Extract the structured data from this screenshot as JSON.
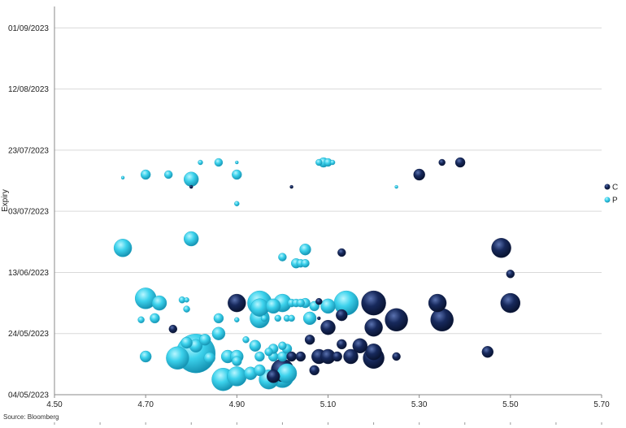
{
  "chart_data": {
    "type": "scatter",
    "ylabel": "Expiry",
    "xlim": [
      4.5,
      5.7
    ],
    "x_ticks": [
      "4.50",
      "4.70",
      "4.90",
      "5.10",
      "5.30",
      "5.50",
      "5.70"
    ],
    "y_ticks": [
      "04/05/2023",
      "24/05/2023",
      "13/06/2023",
      "03/07/2023",
      "23/07/2023",
      "12/08/2023",
      "01/09/2023"
    ],
    "ylim_days": [
      0,
      120
    ],
    "grid": "horizontal",
    "legend_position": "right",
    "colors": {
      "C": "#17295c",
      "P": "#3cd2ec"
    },
    "series": [
      {
        "name": "P",
        "points": [
          {
            "x": 4.81,
            "y": 13.5,
            "s": 24
          },
          {
            "x": 4.77,
            "y": 12.0,
            "s": 14
          },
          {
            "x": 4.7,
            "y": 12.5,
            "s": 7
          },
          {
            "x": 4.87,
            "y": 5.0,
            "s": 14
          },
          {
            "x": 4.9,
            "y": 6.0,
            "s": 12
          },
          {
            "x": 4.97,
            "y": 5.0,
            "s": 12
          },
          {
            "x": 5.0,
            "y": 6.0,
            "s": 14
          },
          {
            "x": 5.01,
            "y": 7.0,
            "s": 12
          },
          {
            "x": 4.93,
            "y": 7.0,
            "s": 8
          },
          {
            "x": 4.95,
            "y": 8.0,
            "s": 7
          },
          {
            "x": 4.84,
            "y": 12.0,
            "s": 7
          },
          {
            "x": 4.88,
            "y": 12.5,
            "s": 8
          },
          {
            "x": 4.9,
            "y": 12.5,
            "s": 8
          },
          {
            "x": 4.9,
            "y": 11.0,
            "s": 6
          },
          {
            "x": 4.95,
            "y": 12.5,
            "s": 6
          },
          {
            "x": 4.98,
            "y": 12.5,
            "s": 6
          },
          {
            "x": 5.0,
            "y": 12.5,
            "s": 6
          },
          {
            "x": 4.94,
            "y": 16.0,
            "s": 7
          },
          {
            "x": 4.98,
            "y": 15.0,
            "s": 6
          },
          {
            "x": 5.01,
            "y": 15.0,
            "s": 6
          },
          {
            "x": 4.97,
            "y": 14.0,
            "s": 5
          },
          {
            "x": 5.0,
            "y": 16.0,
            "s": 5
          },
          {
            "x": 4.79,
            "y": 17.0,
            "s": 7
          },
          {
            "x": 4.81,
            "y": 16.0,
            "s": 8
          },
          {
            "x": 4.83,
            "y": 18.0,
            "s": 7
          },
          {
            "x": 4.86,
            "y": 20.0,
            "s": 8
          },
          {
            "x": 4.92,
            "y": 18.0,
            "s": 4
          },
          {
            "x": 4.96,
            "y": 25.0,
            "s": 4
          },
          {
            "x": 4.69,
            "y": 24.5,
            "s": 4
          },
          {
            "x": 4.72,
            "y": 25.0,
            "s": 6
          },
          {
            "x": 4.86,
            "y": 25.0,
            "s": 6
          },
          {
            "x": 4.9,
            "y": 24.5,
            "s": 3
          },
          {
            "x": 4.95,
            "y": 25.0,
            "s": 12
          },
          {
            "x": 4.99,
            "y": 25.0,
            "s": 4
          },
          {
            "x": 5.01,
            "y": 25.0,
            "s": 4
          },
          {
            "x": 5.02,
            "y": 25.0,
            "s": 4
          },
          {
            "x": 5.06,
            "y": 25.0,
            "s": 8
          },
          {
            "x": 4.7,
            "y": 31.5,
            "s": 13
          },
          {
            "x": 4.73,
            "y": 30.0,
            "s": 9
          },
          {
            "x": 4.78,
            "y": 31.0,
            "s": 4
          },
          {
            "x": 4.79,
            "y": 31.0,
            "s": 3
          },
          {
            "x": 4.79,
            "y": 28.0,
            "s": 4
          },
          {
            "x": 4.95,
            "y": 30.0,
            "s": 15
          },
          {
            "x": 4.95,
            "y": 28.5,
            "s": 11
          },
          {
            "x": 4.98,
            "y": 29.0,
            "s": 9
          },
          {
            "x": 5.0,
            "y": 30.0,
            "s": 11
          },
          {
            "x": 5.02,
            "y": 30.0,
            "s": 5
          },
          {
            "x": 5.03,
            "y": 30.0,
            "s": 5
          },
          {
            "x": 5.04,
            "y": 30.0,
            "s": 5
          },
          {
            "x": 5.05,
            "y": 30.0,
            "s": 6
          },
          {
            "x": 5.07,
            "y": 29.0,
            "s": 6
          },
          {
            "x": 5.1,
            "y": 29.0,
            "s": 9
          },
          {
            "x": 5.14,
            "y": 30.0,
            "s": 15
          },
          {
            "x": 4.65,
            "y": 48.0,
            "s": 11
          },
          {
            "x": 4.8,
            "y": 51.0,
            "s": 9
          },
          {
            "x": 5.0,
            "y": 45.0,
            "s": 5
          },
          {
            "x": 5.03,
            "y": 43.0,
            "s": 6
          },
          {
            "x": 5.04,
            "y": 43.0,
            "s": 5
          },
          {
            "x": 5.05,
            "y": 43.0,
            "s": 5
          },
          {
            "x": 5.05,
            "y": 47.5,
            "s": 7
          },
          {
            "x": 4.9,
            "y": 62.5,
            "s": 3
          },
          {
            "x": 4.65,
            "y": 71.0,
            "s": 2
          },
          {
            "x": 4.7,
            "y": 72.0,
            "s": 6
          },
          {
            "x": 4.75,
            "y": 72.0,
            "s": 5
          },
          {
            "x": 4.8,
            "y": 70.5,
            "s": 9
          },
          {
            "x": 4.82,
            "y": 76.0,
            "s": 3
          },
          {
            "x": 4.86,
            "y": 76.0,
            "s": 5
          },
          {
            "x": 4.9,
            "y": 76.0,
            "s": 2
          },
          {
            "x": 4.9,
            "y": 72.0,
            "s": 6
          },
          {
            "x": 5.08,
            "y": 76.0,
            "s": 4
          },
          {
            "x": 5.09,
            "y": 76.0,
            "s": 6
          },
          {
            "x": 5.1,
            "y": 76.0,
            "s": 5
          },
          {
            "x": 5.11,
            "y": 76.0,
            "s": 3
          },
          {
            "x": 5.25,
            "y": 68.0,
            "s": 2
          }
        ]
      },
      {
        "name": "C",
        "points": [
          {
            "x": 4.98,
            "y": 6.0,
            "s": 8
          },
          {
            "x": 5.0,
            "y": 8.0,
            "s": 14
          },
          {
            "x": 5.07,
            "y": 8.0,
            "s": 6
          },
          {
            "x": 5.02,
            "y": 12.5,
            "s": 6
          },
          {
            "x": 5.04,
            "y": 12.5,
            "s": 6
          },
          {
            "x": 5.08,
            "y": 12.5,
            "s": 9
          },
          {
            "x": 5.1,
            "y": 12.5,
            "s": 9
          },
          {
            "x": 5.12,
            "y": 12.5,
            "s": 6
          },
          {
            "x": 5.15,
            "y": 12.5,
            "s": 9
          },
          {
            "x": 5.2,
            "y": 12.0,
            "s": 13
          },
          {
            "x": 5.25,
            "y": 12.5,
            "s": 5
          },
          {
            "x": 5.2,
            "y": 14.0,
            "s": 10
          },
          {
            "x": 5.13,
            "y": 16.5,
            "s": 6
          },
          {
            "x": 5.17,
            "y": 16.0,
            "s": 9
          },
          {
            "x": 5.45,
            "y": 14.0,
            "s": 7
          },
          {
            "x": 5.06,
            "y": 18.0,
            "s": 6
          },
          {
            "x": 4.76,
            "y": 21.5,
            "s": 5
          },
          {
            "x": 5.1,
            "y": 22.0,
            "s": 9
          },
          {
            "x": 5.2,
            "y": 22.0,
            "s": 11
          },
          {
            "x": 5.08,
            "y": 25.0,
            "s": 2
          },
          {
            "x": 5.25,
            "y": 24.5,
            "s": 14
          },
          {
            "x": 5.35,
            "y": 24.5,
            "s": 14
          },
          {
            "x": 5.13,
            "y": 26.0,
            "s": 7
          },
          {
            "x": 4.9,
            "y": 30.0,
            "s": 11
          },
          {
            "x": 5.08,
            "y": 30.5,
            "s": 4
          },
          {
            "x": 5.2,
            "y": 30.0,
            "s": 15
          },
          {
            "x": 5.34,
            "y": 30.0,
            "s": 11
          },
          {
            "x": 5.5,
            "y": 30.0,
            "s": 12
          },
          {
            "x": 5.48,
            "y": 48.0,
            "s": 12
          },
          {
            "x": 5.5,
            "y": 39.5,
            "s": 5
          },
          {
            "x": 5.13,
            "y": 46.5,
            "s": 5
          },
          {
            "x": 4.8,
            "y": 68.0,
            "s": 2
          },
          {
            "x": 5.02,
            "y": 68.0,
            "s": 2
          },
          {
            "x": 5.3,
            "y": 72.0,
            "s": 7
          },
          {
            "x": 5.35,
            "y": 76.0,
            "s": 4
          },
          {
            "x": 5.39,
            "y": 76.0,
            "s": 6
          }
        ]
      }
    ]
  },
  "source_text": "Source: Bloomberg"
}
